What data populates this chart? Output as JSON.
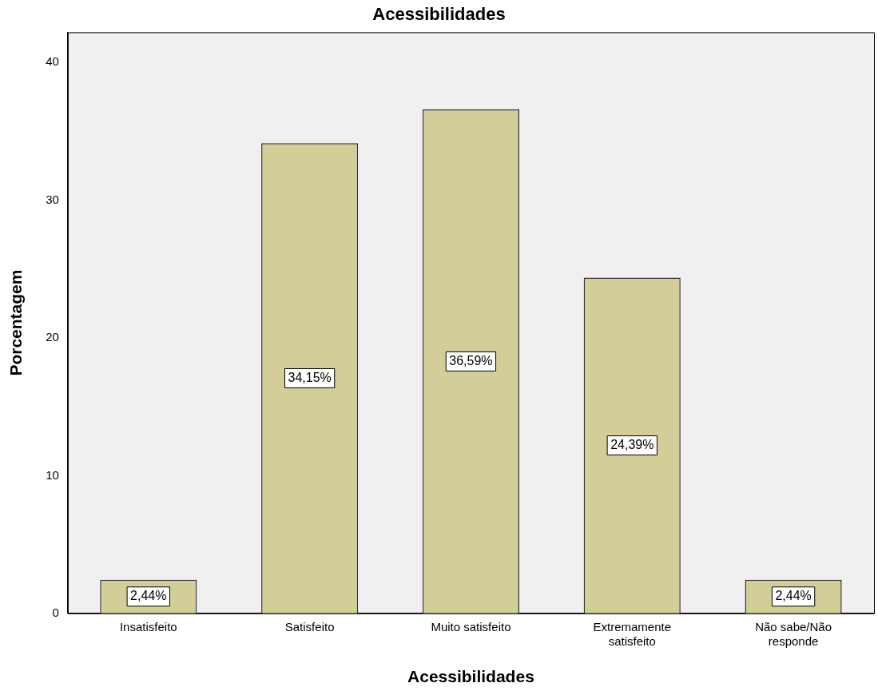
{
  "chart_data": {
    "type": "bar",
    "title": "Acessibilidades",
    "xlabel": "Acessibilidades",
    "ylabel": "Porcentagem",
    "categories": [
      "Insatisfeito",
      "Satisfeito",
      "Muito satisfeito",
      "Extremamente satisfeito",
      "Não sabe/Não responde"
    ],
    "values": [
      2.44,
      34.15,
      36.59,
      24.39,
      2.44
    ],
    "value_labels": [
      "2,44%",
      "34,15%",
      "36,59%",
      "24,39%",
      "2,44%"
    ],
    "color": "#d3ce98",
    "ylim": [
      0,
      42.2
    ],
    "yticks": [
      0,
      10,
      20,
      30,
      40
    ],
    "grid": false,
    "legend": false
  }
}
